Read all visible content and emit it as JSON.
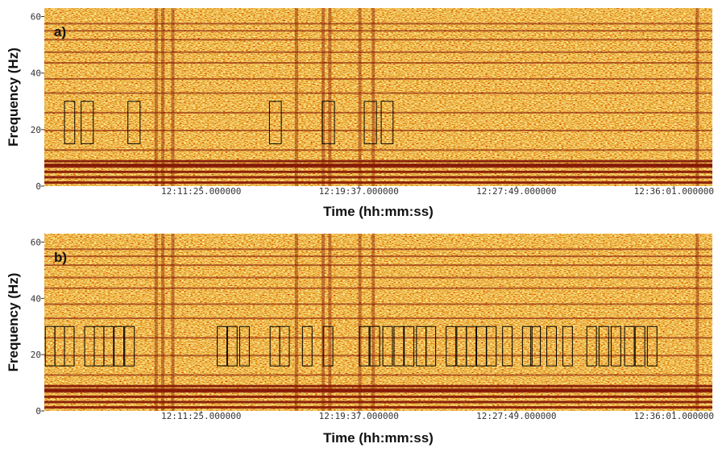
{
  "chart_data": [
    {
      "type": "spectrogram",
      "panel_label": "a)",
      "x_label": "Time (hh:mm:ss)",
      "y_label": "Frequency (Hz)",
      "xlim": [
        43395,
        45481
      ],
      "ylim": [
        0,
        63
      ],
      "xticks": [
        {
          "value": 43885,
          "label": "12:11:25.000000"
        },
        {
          "value": 44377,
          "label": "12:19:37.000000"
        },
        {
          "value": 44869,
          "label": "12:27:49.000000"
        },
        {
          "value": 45361,
          "label": "12:36:01.000000"
        }
      ],
      "yticks": [
        0,
        20,
        40,
        60
      ],
      "box_color": "#000000",
      "detections": [
        {
          "start": 43458,
          "end": 43490,
          "low": 15,
          "high": 30
        },
        {
          "start": 43510,
          "end": 43548,
          "low": 15,
          "high": 30
        },
        {
          "start": 43656,
          "end": 43694,
          "low": 15,
          "high": 30
        },
        {
          "start": 44098,
          "end": 44135,
          "low": 15,
          "high": 30
        },
        {
          "start": 44263,
          "end": 44301,
          "low": 15,
          "high": 30
        },
        {
          "start": 44394,
          "end": 44432,
          "low": 15,
          "high": 30
        },
        {
          "start": 44447,
          "end": 44484,
          "low": 15,
          "high": 30
        }
      ]
    },
    {
      "type": "spectrogram",
      "panel_label": "b)",
      "x_label": "Time (hh:mm:ss)",
      "y_label": "Frequency (Hz)",
      "xlim": [
        43395,
        45481
      ],
      "ylim": [
        0,
        63
      ],
      "xticks": [
        {
          "value": 43885,
          "label": "12:11:25.000000"
        },
        {
          "value": 44377,
          "label": "12:19:37.000000"
        },
        {
          "value": 44869,
          "label": "12:27:49.000000"
        },
        {
          "value": 45361,
          "label": "12:36:01.000000"
        }
      ],
      "yticks": [
        0,
        20,
        40,
        60
      ],
      "box_color": "#000000",
      "detections": [
        {
          "start": 43398,
          "end": 43428,
          "low": 16,
          "high": 30
        },
        {
          "start": 43428,
          "end": 43458,
          "low": 16,
          "high": 30
        },
        {
          "start": 43458,
          "end": 43488,
          "low": 16,
          "high": 30
        },
        {
          "start": 43521,
          "end": 43551,
          "low": 16,
          "high": 30
        },
        {
          "start": 43551,
          "end": 43581,
          "low": 16,
          "high": 30
        },
        {
          "start": 43581,
          "end": 43611,
          "low": 16,
          "high": 30
        },
        {
          "start": 43613,
          "end": 43643,
          "low": 16,
          "high": 30
        },
        {
          "start": 43646,
          "end": 43676,
          "low": 16,
          "high": 30
        },
        {
          "start": 43935,
          "end": 43965,
          "low": 16,
          "high": 30
        },
        {
          "start": 43967,
          "end": 43997,
          "low": 16,
          "high": 30
        },
        {
          "start": 44005,
          "end": 44035,
          "low": 16,
          "high": 30
        },
        {
          "start": 44100,
          "end": 44130,
          "low": 16,
          "high": 30
        },
        {
          "start": 44130,
          "end": 44160,
          "low": 16,
          "high": 30
        },
        {
          "start": 44201,
          "end": 44231,
          "low": 16,
          "high": 30
        },
        {
          "start": 44266,
          "end": 44296,
          "low": 16,
          "high": 30
        },
        {
          "start": 44379,
          "end": 44409,
          "low": 16,
          "high": 30
        },
        {
          "start": 44412,
          "end": 44442,
          "low": 16,
          "high": 30
        },
        {
          "start": 44452,
          "end": 44482,
          "low": 16,
          "high": 30
        },
        {
          "start": 44487,
          "end": 44517,
          "low": 16,
          "high": 30
        },
        {
          "start": 44519,
          "end": 44549,
          "low": 16,
          "high": 30
        },
        {
          "start": 44557,
          "end": 44587,
          "low": 16,
          "high": 30
        },
        {
          "start": 44587,
          "end": 44617,
          "low": 16,
          "high": 30
        },
        {
          "start": 44650,
          "end": 44680,
          "low": 16,
          "high": 30
        },
        {
          "start": 44683,
          "end": 44713,
          "low": 16,
          "high": 30
        },
        {
          "start": 44713,
          "end": 44743,
          "low": 16,
          "high": 30
        },
        {
          "start": 44745,
          "end": 44775,
          "low": 16,
          "high": 30
        },
        {
          "start": 44776,
          "end": 44806,
          "low": 16,
          "high": 30
        },
        {
          "start": 44826,
          "end": 44856,
          "low": 16,
          "high": 30
        },
        {
          "start": 44888,
          "end": 44918,
          "low": 16,
          "high": 30
        },
        {
          "start": 44914,
          "end": 44944,
          "low": 16,
          "high": 30
        },
        {
          "start": 44964,
          "end": 44994,
          "low": 16,
          "high": 30
        },
        {
          "start": 45014,
          "end": 45044,
          "low": 16,
          "high": 30
        },
        {
          "start": 45089,
          "end": 45119,
          "low": 16,
          "high": 30
        },
        {
          "start": 45127,
          "end": 45157,
          "low": 16,
          "high": 30
        },
        {
          "start": 45165,
          "end": 45195,
          "low": 16,
          "high": 30
        },
        {
          "start": 45207,
          "end": 45237,
          "low": 16,
          "high": 30
        },
        {
          "start": 45240,
          "end": 45270,
          "low": 16,
          "high": 30
        },
        {
          "start": 45278,
          "end": 45308,
          "low": 16,
          "high": 30
        }
      ]
    }
  ]
}
